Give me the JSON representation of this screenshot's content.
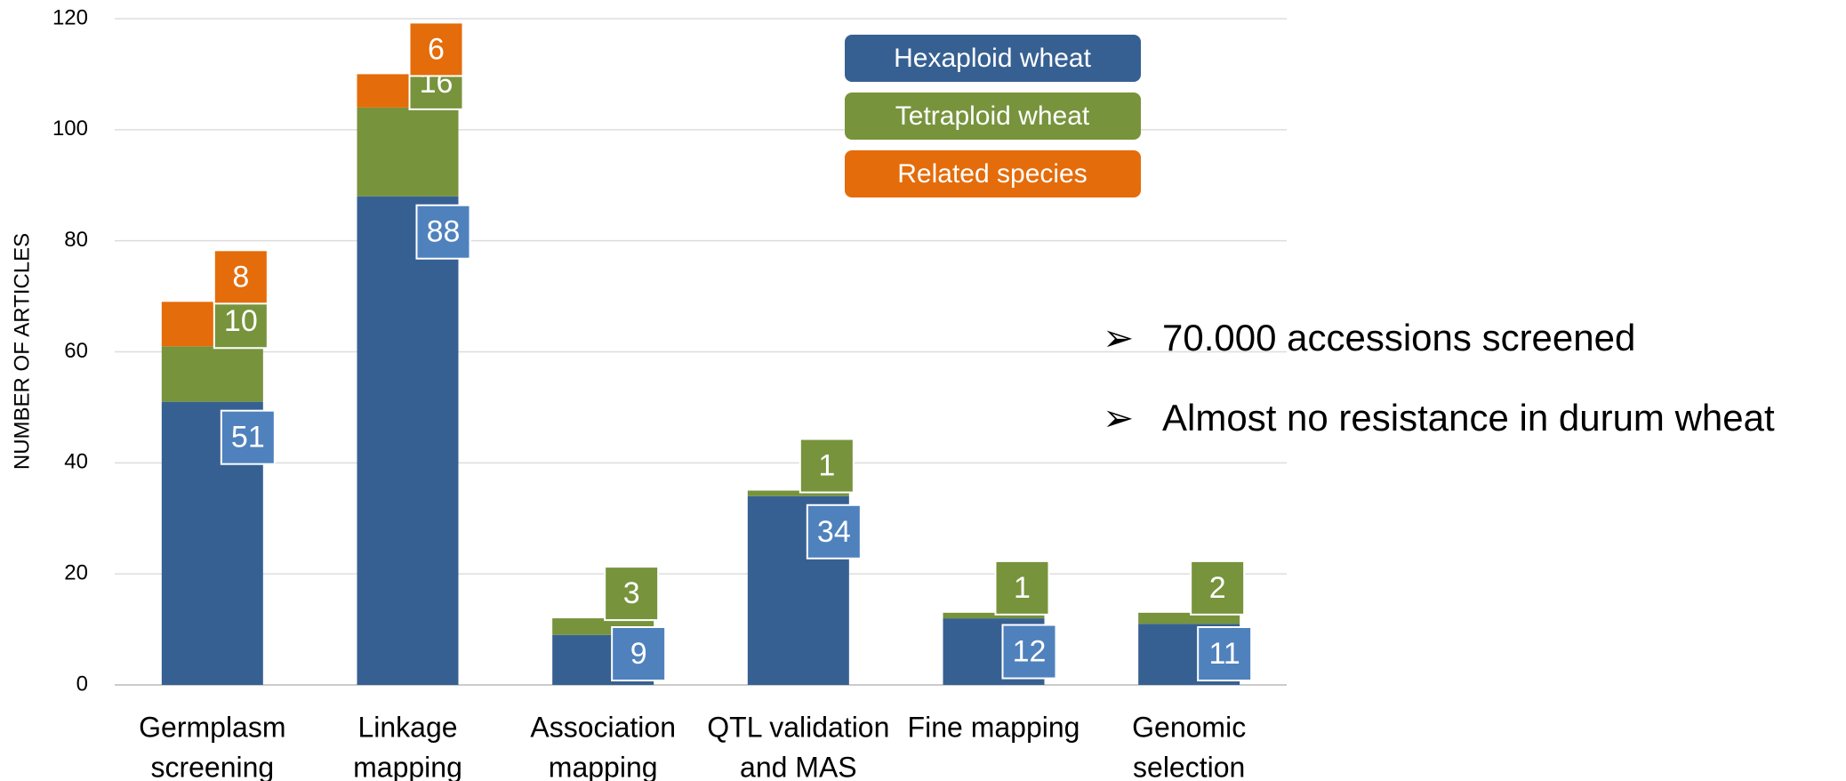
{
  "chart_data": {
    "type": "stacked-bar",
    "y_label": "NUMBER OF ARTICLES",
    "categories": [
      [
        "Germplasm",
        "screening"
      ],
      [
        "Linkage",
        "mapping"
      ],
      [
        "Association",
        "mapping"
      ],
      [
        "QTL validation",
        "and MAS"
      ],
      [
        "Fine mapping"
      ],
      [
        "Genomic",
        "selection"
      ]
    ],
    "series": [
      {
        "name": "Hexaploid wheat",
        "color": "#376092",
        "values": [
          51,
          88,
          9,
          34,
          12,
          11
        ]
      },
      {
        "name": "Tetraploid wheat",
        "color": "#77933c",
        "values": [
          10,
          16,
          3,
          1,
          1,
          2
        ]
      },
      {
        "name": "Related species",
        "color": "#e46c0a",
        "values": [
          8,
          6,
          null,
          null,
          null,
          null
        ]
      }
    ],
    "ylim": [
      0,
      120
    ],
    "yticks": [
      0,
      20,
      40,
      60,
      80,
      100,
      120
    ],
    "grid": true,
    "annotations": [
      "70.000 accessions screened",
      "Almost no resistance in durum wheat"
    ]
  }
}
